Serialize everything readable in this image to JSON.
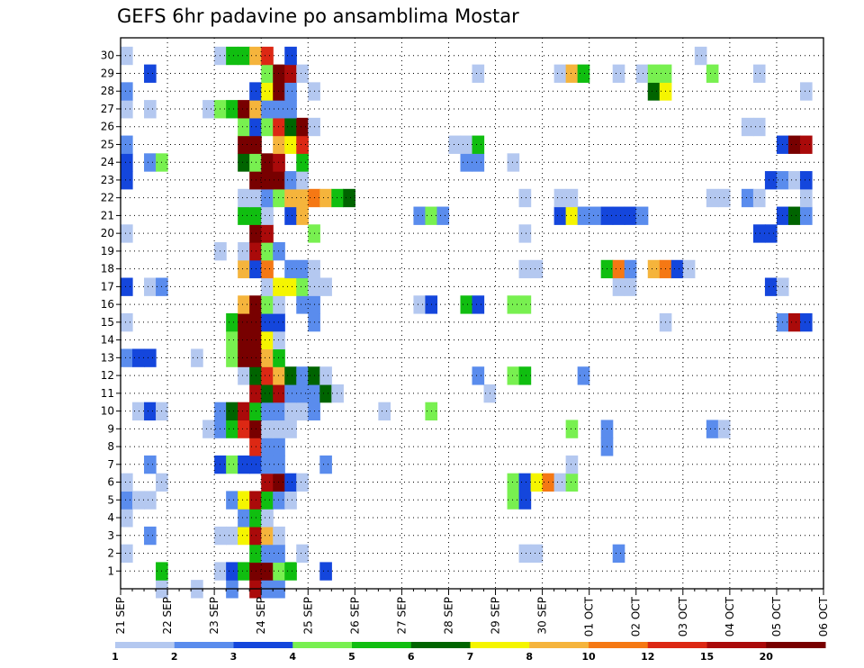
{
  "chart_data": {
    "type": "heatmap",
    "title": "GEFS 6hr padavine po ansamblima Mostar",
    "ylabel": "",
    "xlabel": "",
    "y_ticks": [
      "1",
      "2",
      "3",
      "4",
      "5",
      "6",
      "7",
      "8",
      "9",
      "10",
      "11",
      "12",
      "13",
      "14",
      "15",
      "16",
      "17",
      "18",
      "19",
      "20",
      "21",
      "22",
      "23",
      "24",
      "25",
      "26",
      "27",
      "28",
      "29",
      "30"
    ],
    "x_ticks": [
      "21 SEP",
      "22 SEP",
      "23 SEP",
      "24 SEP",
      "25 SEP",
      "26 SEP",
      "27 SEP",
      "28 SEP",
      "29 SEP",
      "30 SEP",
      "01 OCT",
      "02 OCT",
      "03 OCT",
      "04 OCT",
      "05 OCT",
      "06 OCT"
    ],
    "x_range": [
      "21 SEP 00",
      "06 OCT 00"
    ],
    "time_step": "6hr",
    "grid": "dotted",
    "legend_position": "bottom",
    "legend_labels": [
      "1",
      "2",
      "3",
      "4",
      "5",
      "6",
      "7",
      "8",
      "10",
      "12",
      "15",
      "20"
    ],
    "legend_colors": [
      "#b4c8f0",
      "#5a8ced",
      "#1446dc",
      "#78f050",
      "#10be10",
      "#006400",
      "#f5f500",
      "#f5b43c",
      "#f57814",
      "#dc2814",
      "#aa0a0a",
      "#780000"
    ],
    "class_colors": [
      "#ffffff",
      "#b4c8f0",
      "#5a8ced",
      "#1446dc",
      "#78f050",
      "#10be10",
      "#006400",
      "#f5f500",
      "#f5b43c",
      "#f57814",
      "#dc2814",
      "#aa0a0a",
      "#780000"
    ],
    "rows": {
      "30": [
        [
          0,
          1
        ],
        [
          8,
          1
        ],
        [
          9,
          5
        ],
        [
          10,
          5
        ],
        [
          11,
          8
        ],
        [
          12,
          10
        ],
        [
          14,
          3
        ],
        [
          49,
          1
        ]
      ],
      "29": [
        [
          2,
          3
        ],
        [
          12,
          4
        ],
        [
          13,
          12
        ],
        [
          14,
          11
        ],
        [
          15,
          1
        ],
        [
          30,
          1
        ],
        [
          37,
          1
        ],
        [
          38,
          8
        ],
        [
          39,
          5
        ],
        [
          42,
          1
        ],
        [
          44,
          1
        ],
        [
          45,
          4
        ],
        [
          46,
          4
        ],
        [
          50,
          4
        ],
        [
          54,
          1
        ]
      ],
      "28": [
        [
          0,
          2
        ],
        [
          11,
          3
        ],
        [
          12,
          7
        ],
        [
          13,
          12
        ],
        [
          14,
          2
        ],
        [
          16,
          1
        ],
        [
          45,
          6
        ],
        [
          46,
          7
        ],
        [
          58,
          1
        ]
      ],
      "27": [
        [
          0,
          1
        ],
        [
          2,
          1
        ],
        [
          7,
          1
        ],
        [
          8,
          4
        ],
        [
          9,
          5
        ],
        [
          10,
          12
        ],
        [
          11,
          8
        ],
        [
          12,
          2
        ],
        [
          13,
          2
        ],
        [
          14,
          2
        ]
      ],
      "26": [
        [
          10,
          4
        ],
        [
          11,
          3
        ],
        [
          12,
          4
        ],
        [
          13,
          10
        ],
        [
          14,
          6
        ],
        [
          15,
          12
        ],
        [
          16,
          1
        ],
        [
          53,
          1
        ],
        [
          54,
          1
        ]
      ],
      "25": [
        [
          0,
          2
        ],
        [
          10,
          12
        ],
        [
          11,
          12
        ],
        [
          13,
          8
        ],
        [
          14,
          7
        ],
        [
          15,
          10
        ],
        [
          28,
          1
        ],
        [
          29,
          1
        ],
        [
          30,
          5
        ],
        [
          56,
          3
        ],
        [
          57,
          12
        ],
        [
          58,
          11
        ]
      ],
      "24": [
        [
          0,
          3
        ],
        [
          2,
          2
        ],
        [
          3,
          4
        ],
        [
          10,
          6
        ],
        [
          11,
          4
        ],
        [
          12,
          12
        ],
        [
          13,
          11
        ],
        [
          15,
          5
        ],
        [
          29,
          2
        ],
        [
          30,
          2
        ],
        [
          33,
          1
        ]
      ],
      "23": [
        [
          0,
          3
        ],
        [
          11,
          12
        ],
        [
          12,
          12
        ],
        [
          13,
          12
        ],
        [
          14,
          2
        ],
        [
          15,
          1
        ],
        [
          55,
          3
        ],
        [
          56,
          2
        ],
        [
          57,
          1
        ],
        [
          58,
          3
        ]
      ],
      "22": [
        [
          10,
          1
        ],
        [
          11,
          1
        ],
        [
          12,
          2
        ],
        [
          13,
          4
        ],
        [
          14,
          8
        ],
        [
          15,
          8
        ],
        [
          16,
          9
        ],
        [
          17,
          8
        ],
        [
          18,
          5
        ],
        [
          19,
          6
        ],
        [
          34,
          1
        ],
        [
          37,
          1
        ],
        [
          38,
          1
        ],
        [
          50,
          1
        ],
        [
          51,
          1
        ],
        [
          53,
          2
        ],
        [
          54,
          1
        ],
        [
          58,
          1
        ]
      ],
      "21": [
        [
          10,
          5
        ],
        [
          11,
          5
        ],
        [
          12,
          1
        ],
        [
          14,
          3
        ],
        [
          15,
          8
        ],
        [
          25,
          2
        ],
        [
          26,
          4
        ],
        [
          27,
          2
        ],
        [
          37,
          3
        ],
        [
          38,
          7
        ],
        [
          39,
          2
        ],
        [
          40,
          2
        ],
        [
          41,
          3
        ],
        [
          42,
          3
        ],
        [
          43,
          3
        ],
        [
          44,
          2
        ],
        [
          56,
          3
        ],
        [
          57,
          6
        ],
        [
          58,
          2
        ]
      ],
      "20": [
        [
          0,
          1
        ],
        [
          11,
          12
        ],
        [
          12,
          11
        ],
        [
          16,
          4
        ],
        [
          34,
          1
        ],
        [
          54,
          3
        ],
        [
          55,
          3
        ]
      ],
      "19": [
        [
          8,
          1
        ],
        [
          10,
          1
        ],
        [
          11,
          11
        ],
        [
          12,
          4
        ],
        [
          13,
          2
        ]
      ],
      "18": [
        [
          10,
          8
        ],
        [
          11,
          3
        ],
        [
          12,
          9
        ],
        [
          14,
          2
        ],
        [
          15,
          2
        ],
        [
          16,
          1
        ],
        [
          34,
          1
        ],
        [
          35,
          1
        ],
        [
          41,
          5
        ],
        [
          42,
          9
        ],
        [
          43,
          2
        ],
        [
          45,
          8
        ],
        [
          46,
          9
        ],
        [
          47,
          3
        ],
        [
          48,
          1
        ]
      ],
      "17": [
        [
          0,
          3
        ],
        [
          2,
          1
        ],
        [
          3,
          2
        ],
        [
          12,
          1
        ],
        [
          13,
          7
        ],
        [
          14,
          7
        ],
        [
          15,
          4
        ],
        [
          16,
          1
        ],
        [
          17,
          1
        ],
        [
          42,
          1
        ],
        [
          43,
          1
        ],
        [
          55,
          3
        ],
        [
          56,
          1
        ]
      ],
      "16": [
        [
          10,
          8
        ],
        [
          11,
          12
        ],
        [
          12,
          4
        ],
        [
          13,
          1
        ],
        [
          15,
          2
        ],
        [
          16,
          2
        ],
        [
          25,
          1
        ],
        [
          26,
          3
        ],
        [
          29,
          5
        ],
        [
          30,
          3
        ],
        [
          33,
          4
        ],
        [
          34,
          4
        ]
      ],
      "15": [
        [
          0,
          1
        ],
        [
          9,
          5
        ],
        [
          10,
          12
        ],
        [
          11,
          12
        ],
        [
          12,
          3
        ],
        [
          13,
          3
        ],
        [
          16,
          2
        ],
        [
          46,
          1
        ],
        [
          56,
          2
        ],
        [
          57,
          11
        ],
        [
          58,
          3
        ]
      ],
      "14": [
        [
          9,
          4
        ],
        [
          10,
          12
        ],
        [
          11,
          12
        ],
        [
          12,
          7
        ],
        [
          13,
          1
        ]
      ],
      "13": [
        [
          0,
          2
        ],
        [
          1,
          3
        ],
        [
          2,
          3
        ],
        [
          6,
          1
        ],
        [
          9,
          4
        ],
        [
          10,
          12
        ],
        [
          11,
          12
        ],
        [
          12,
          8
        ],
        [
          13,
          5
        ]
      ],
      "12": [
        [
          10,
          1
        ],
        [
          11,
          6
        ],
        [
          12,
          10
        ],
        [
          13,
          8
        ],
        [
          14,
          6
        ],
        [
          15,
          2
        ],
        [
          16,
          6
        ],
        [
          17,
          1
        ],
        [
          30,
          2
        ],
        [
          33,
          4
        ],
        [
          34,
          5
        ],
        [
          39,
          2
        ]
      ],
      "11": [
        [
          11,
          11
        ],
        [
          12,
          6
        ],
        [
          13,
          11
        ],
        [
          14,
          2
        ],
        [
          15,
          2
        ],
        [
          16,
          2
        ],
        [
          17,
          6
        ],
        [
          18,
          1
        ],
        [
          31,
          1
        ]
      ],
      "10": [
        [
          1,
          1
        ],
        [
          2,
          3
        ],
        [
          3,
          1
        ],
        [
          8,
          2
        ],
        [
          9,
          6
        ],
        [
          10,
          11
        ],
        [
          11,
          5
        ],
        [
          12,
          2
        ],
        [
          13,
          2
        ],
        [
          14,
          1
        ],
        [
          15,
          1
        ],
        [
          16,
          2
        ],
        [
          22,
          1
        ],
        [
          26,
          4
        ]
      ],
      "9": [
        [
          7,
          1
        ],
        [
          8,
          2
        ],
        [
          9,
          5
        ],
        [
          10,
          10
        ],
        [
          11,
          12
        ],
        [
          12,
          1
        ],
        [
          13,
          1
        ],
        [
          14,
          1
        ],
        [
          38,
          4
        ],
        [
          41,
          2
        ],
        [
          50,
          2
        ],
        [
          51,
          1
        ]
      ],
      "8": [
        [
          11,
          10
        ],
        [
          12,
          2
        ],
        [
          13,
          2
        ],
        [
          41,
          2
        ]
      ],
      "7": [
        [
          2,
          2
        ],
        [
          8,
          3
        ],
        [
          9,
          4
        ],
        [
          10,
          3
        ],
        [
          11,
          3
        ],
        [
          12,
          2
        ],
        [
          13,
          2
        ],
        [
          17,
          2
        ],
        [
          38,
          1
        ]
      ],
      "6": [
        [
          0,
          1
        ],
        [
          3,
          1
        ],
        [
          12,
          11
        ],
        [
          13,
          12
        ],
        [
          14,
          3
        ],
        [
          15,
          1
        ],
        [
          33,
          4
        ],
        [
          34,
          3
        ],
        [
          35,
          7
        ],
        [
          36,
          9
        ],
        [
          37,
          1
        ],
        [
          38,
          4
        ]
      ],
      "5": [
        [
          0,
          2
        ],
        [
          1,
          1
        ],
        [
          2,
          1
        ],
        [
          9,
          2
        ],
        [
          10,
          7
        ],
        [
          11,
          11
        ],
        [
          12,
          5
        ],
        [
          13,
          2
        ],
        [
          14,
          1
        ],
        [
          33,
          4
        ],
        [
          34,
          3
        ]
      ],
      "4": [
        [
          0,
          1
        ],
        [
          10,
          2
        ],
        [
          11,
          5
        ],
        [
          12,
          1
        ]
      ],
      "3": [
        [
          2,
          2
        ],
        [
          8,
          1
        ],
        [
          9,
          1
        ],
        [
          10,
          7
        ],
        [
          11,
          11
        ],
        [
          12,
          8
        ],
        [
          13,
          1
        ]
      ],
      "2": [
        [
          0,
          1
        ],
        [
          11,
          5
        ],
        [
          12,
          2
        ],
        [
          13,
          2
        ],
        [
          15,
          1
        ],
        [
          34,
          1
        ],
        [
          35,
          1
        ],
        [
          42,
          2
        ]
      ],
      "1": [
        [
          3,
          5
        ],
        [
          8,
          1
        ],
        [
          9,
          3
        ],
        [
          10,
          5
        ],
        [
          11,
          12
        ],
        [
          12,
          12
        ],
        [
          13,
          4
        ],
        [
          14,
          5
        ],
        [
          17,
          3
        ]
      ],
      "0": [
        [
          3,
          1
        ],
        [
          6,
          1
        ],
        [
          9,
          2
        ],
        [
          11,
          11
        ],
        [
          12,
          2
        ],
        [
          13,
          2
        ]
      ]
    }
  }
}
